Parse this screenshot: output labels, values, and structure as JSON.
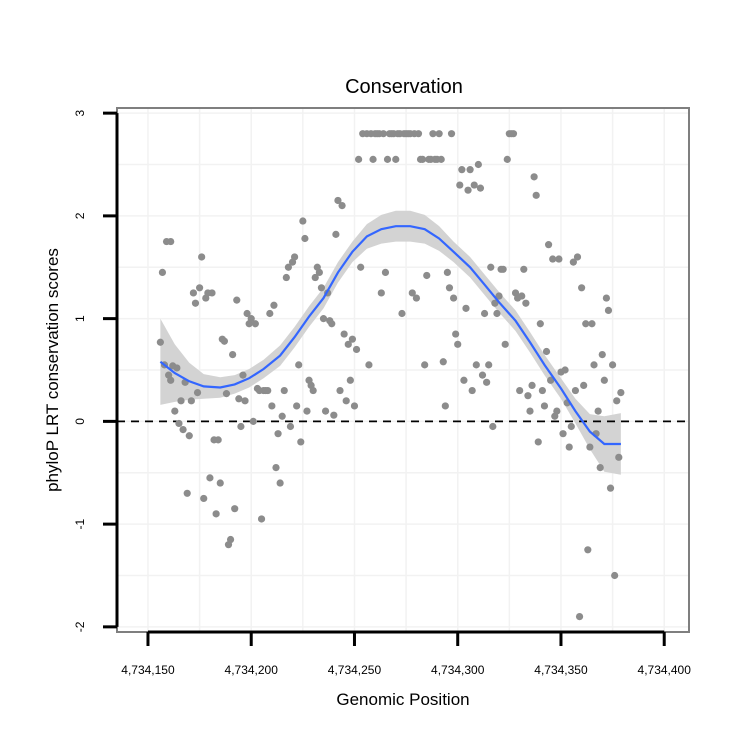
{
  "chart_data": {
    "type": "scatter",
    "title": "Conservation",
    "xlabel": "Genomic Position",
    "ylabel": "phyloP LRT conservation scores",
    "xlim": [
      4734135,
      4734412
    ],
    "ylim": [
      -2.05,
      3.05
    ],
    "x_ticks": [
      4734150,
      4734200,
      4734250,
      4734300,
      4734350,
      4734400
    ],
    "x_tick_labels": [
      "4,734,150",
      "4,734,200",
      "4,734,250",
      "4,734,300",
      "4,734,350",
      "4,734,400"
    ],
    "y_ticks": [
      -2,
      -1,
      0,
      1,
      2,
      3
    ],
    "y_tick_labels": [
      "-2",
      "-1",
      "0",
      "1",
      "2",
      "3"
    ],
    "reference_line": {
      "y": 0,
      "style": "dashed"
    },
    "grid": true,
    "colors": {
      "points": "#8c8c8c",
      "smooth_line": "#3366ff",
      "confidence_band": "#d3d3d3",
      "reference_line": "#000000",
      "panel_border": "#7f7f7f",
      "grid": "#f2f2f2"
    },
    "points": [
      [
        4734156,
        0.77
      ],
      [
        4734157,
        1.45
      ],
      [
        4734158,
        0.55
      ],
      [
        4734159,
        1.75
      ],
      [
        4734160,
        0.45
      ],
      [
        4734161,
        0.4
      ],
      [
        4734161,
        1.75
      ],
      [
        4734162,
        0.54
      ],
      [
        4734163,
        0.1
      ],
      [
        4734164,
        0.52
      ],
      [
        4734165,
        -0.02
      ],
      [
        4734166,
        0.2
      ],
      [
        4734167,
        -0.08
      ],
      [
        4734168,
        0.38
      ],
      [
        4734169,
        -0.7
      ],
      [
        4734170,
        -0.14
      ],
      [
        4734171,
        0.2
      ],
      [
        4734172,
        1.25
      ],
      [
        4734173,
        1.15
      ],
      [
        4734174,
        0.28
      ],
      [
        4734175,
        1.3
      ],
      [
        4734176,
        1.6
      ],
      [
        4734177,
        -0.75
      ],
      [
        4734178,
        1.2
      ],
      [
        4734179,
        1.25
      ],
      [
        4734180,
        -0.55
      ],
      [
        4734181,
        1.25
      ],
      [
        4734182,
        -0.18
      ],
      [
        4734183,
        -0.9
      ],
      [
        4734184,
        -0.18
      ],
      [
        4734185,
        -0.6
      ],
      [
        4734186,
        0.8
      ],
      [
        4734187,
        0.78
      ],
      [
        4734188,
        0.27
      ],
      [
        4734189,
        -1.2
      ],
      [
        4734190,
        -1.15
      ],
      [
        4734191,
        0.65
      ],
      [
        4734192,
        -0.85
      ],
      [
        4734193,
        1.18
      ],
      [
        4734194,
        0.22
      ],
      [
        4734195,
        -0.05
      ],
      [
        4734196,
        0.45
      ],
      [
        4734197,
        0.2
      ],
      [
        4734198,
        1.05
      ],
      [
        4734199,
        0.95
      ],
      [
        4734200,
        1.0
      ],
      [
        4734201,
        0.0
      ],
      [
        4734202,
        0.95
      ],
      [
        4734203,
        0.32
      ],
      [
        4734204,
        0.3
      ],
      [
        4734205,
        -0.95
      ],
      [
        4734206,
        0.3
      ],
      [
        4734207,
        0.3
      ],
      [
        4734208,
        0.3
      ],
      [
        4734209,
        1.05
      ],
      [
        4734210,
        0.15
      ],
      [
        4734211,
        1.13
      ],
      [
        4734212,
        -0.45
      ],
      [
        4734213,
        -0.12
      ],
      [
        4734214,
        -0.6
      ],
      [
        4734215,
        0.05
      ],
      [
        4734216,
        0.3
      ],
      [
        4734217,
        1.4
      ],
      [
        4734218,
        1.5
      ],
      [
        4734219,
        -0.05
      ],
      [
        4734220,
        1.55
      ],
      [
        4734221,
        1.6
      ],
      [
        4734222,
        0.15
      ],
      [
        4734223,
        0.55
      ],
      [
        4734224,
        -0.2
      ],
      [
        4734225,
        1.95
      ],
      [
        4734226,
        1.78
      ],
      [
        4734227,
        0.1
      ],
      [
        4734228,
        0.4
      ],
      [
        4734229,
        0.35
      ],
      [
        4734230,
        0.3
      ],
      [
        4734231,
        1.4
      ],
      [
        4734232,
        1.5
      ],
      [
        4734233,
        1.45
      ],
      [
        4734234,
        1.3
      ],
      [
        4734235,
        1.0
      ],
      [
        4734236,
        0.1
      ],
      [
        4734237,
        1.25
      ],
      [
        4734238,
        0.98
      ],
      [
        4734239,
        0.95
      ],
      [
        4734240,
        0.06
      ],
      [
        4734241,
        1.82
      ],
      [
        4734242,
        2.15
      ],
      [
        4734243,
        0.3
      ],
      [
        4734244,
        2.1
      ],
      [
        4734245,
        0.85
      ],
      [
        4734246,
        0.2
      ],
      [
        4734247,
        0.75
      ],
      [
        4734248,
        0.4
      ],
      [
        4734249,
        0.8
      ],
      [
        4734250,
        0.15
      ],
      [
        4734251,
        0.7
      ],
      [
        4734252,
        2.55
      ],
      [
        4734253,
        1.5
      ],
      [
        4734254,
        2.8
      ],
      [
        4734256,
        2.8
      ],
      [
        4734257,
        0.55
      ],
      [
        4734258,
        2.8
      ],
      [
        4734259,
        2.55
      ],
      [
        4734260,
        2.8
      ],
      [
        4734261,
        2.8
      ],
      [
        4734262,
        2.8
      ],
      [
        4734263,
        1.25
      ],
      [
        4734264,
        2.8
      ],
      [
        4734265,
        1.45
      ],
      [
        4734266,
        2.55
      ],
      [
        4734267,
        2.8
      ],
      [
        4734268,
        2.8
      ],
      [
        4734269,
        2.8
      ],
      [
        4734270,
        2.55
      ],
      [
        4734271,
        2.8
      ],
      [
        4734272,
        2.8
      ],
      [
        4734273,
        1.05
      ],
      [
        4734274,
        2.8
      ],
      [
        4734275,
        2.8
      ],
      [
        4734276,
        2.8
      ],
      [
        4734277,
        2.8
      ],
      [
        4734278,
        1.25
      ],
      [
        4734279,
        2.8
      ],
      [
        4734280,
        1.2
      ],
      [
        4734281,
        2.8
      ],
      [
        4734282,
        2.55
      ],
      [
        4734283,
        2.55
      ],
      [
        4734284,
        0.55
      ],
      [
        4734285,
        1.42
      ],
      [
        4734286,
        2.55
      ],
      [
        4734287,
        2.55
      ],
      [
        4734288,
        2.8
      ],
      [
        4734289,
        2.55
      ],
      [
        4734290,
        2.55
      ],
      [
        4734291,
        2.8
      ],
      [
        4734292,
        2.55
      ],
      [
        4734293,
        0.58
      ],
      [
        4734294,
        0.15
      ],
      [
        4734295,
        1.45
      ],
      [
        4734296,
        1.3
      ],
      [
        4734297,
        2.8
      ],
      [
        4734298,
        1.2
      ],
      [
        4734299,
        0.85
      ],
      [
        4734300,
        0.75
      ],
      [
        4734301,
        2.3
      ],
      [
        4734302,
        2.45
      ],
      [
        4734303,
        0.4
      ],
      [
        4734304,
        1.1
      ],
      [
        4734305,
        2.25
      ],
      [
        4734306,
        2.45
      ],
      [
        4734307,
        0.3
      ],
      [
        4734308,
        2.3
      ],
      [
        4734309,
        0.55
      ],
      [
        4734310,
        2.5
      ],
      [
        4734311,
        2.27
      ],
      [
        4734312,
        0.45
      ],
      [
        4734313,
        1.05
      ],
      [
        4734314,
        0.38
      ],
      [
        4734315,
        0.55
      ],
      [
        4734316,
        1.5
      ],
      [
        4734317,
        -0.05
      ],
      [
        4734318,
        1.15
      ],
      [
        4734319,
        1.05
      ],
      [
        4734320,
        1.22
      ],
      [
        4734321,
        1.48
      ],
      [
        4734322,
        1.48
      ],
      [
        4734323,
        0.75
      ],
      [
        4734324,
        2.55
      ],
      [
        4734325,
        2.8
      ],
      [
        4734326,
        2.8
      ],
      [
        4734327,
        2.8
      ],
      [
        4734328,
        1.25
      ],
      [
        4734329,
        1.2
      ],
      [
        4734330,
        0.3
      ],
      [
        4734331,
        1.22
      ],
      [
        4734332,
        1.48
      ],
      [
        4734333,
        1.15
      ],
      [
        4734334,
        0.25
      ],
      [
        4734335,
        0.1
      ],
      [
        4734336,
        0.35
      ],
      [
        4734337,
        2.38
      ],
      [
        4734338,
        2.2
      ],
      [
        4734339,
        -0.2
      ],
      [
        4734340,
        0.95
      ],
      [
        4734341,
        0.3
      ],
      [
        4734342,
        0.15
      ],
      [
        4734343,
        0.68
      ],
      [
        4734344,
        1.72
      ],
      [
        4734345,
        0.4
      ],
      [
        4734346,
        1.58
      ],
      [
        4734347,
        0.05
      ],
      [
        4734348,
        0.1
      ],
      [
        4734349,
        1.58
      ],
      [
        4734350,
        0.48
      ],
      [
        4734351,
        -0.12
      ],
      [
        4734352,
        0.5
      ],
      [
        4734353,
        0.18
      ],
      [
        4734354,
        -0.25
      ],
      [
        4734355,
        -0.05
      ],
      [
        4734356,
        1.55
      ],
      [
        4734357,
        0.3
      ],
      [
        4734358,
        1.6
      ],
      [
        4734359,
        -1.9
      ],
      [
        4734360,
        1.3
      ],
      [
        4734361,
        0.35
      ],
      [
        4734362,
        0.95
      ],
      [
        4734363,
        -1.25
      ],
      [
        4734364,
        -0.25
      ],
      [
        4734365,
        0.95
      ],
      [
        4734366,
        0.55
      ],
      [
        4734367,
        -0.12
      ],
      [
        4734368,
        0.1
      ],
      [
        4734369,
        -0.45
      ],
      [
        4734370,
        0.65
      ],
      [
        4734371,
        0.4
      ],
      [
        4734372,
        1.2
      ],
      [
        4734373,
        1.08
      ],
      [
        4734374,
        -0.65
      ],
      [
        4734375,
        0.55
      ],
      [
        4734376,
        -1.5
      ],
      [
        4734377,
        0.2
      ],
      [
        4734378,
        -0.35
      ],
      [
        4734379,
        0.28
      ]
    ],
    "smooth_curve": [
      [
        4734156,
        0.58
      ],
      [
        4734163,
        0.47
      ],
      [
        4734170,
        0.39
      ],
      [
        4734177,
        0.34
      ],
      [
        4734185,
        0.33
      ],
      [
        4734192,
        0.36
      ],
      [
        4734199,
        0.42
      ],
      [
        4734206,
        0.51
      ],
      [
        4734214,
        0.64
      ],
      [
        4734221,
        0.82
      ],
      [
        4734228,
        1.02
      ],
      [
        4734235,
        1.2
      ],
      [
        4734242,
        1.45
      ],
      [
        4734249,
        1.65
      ],
      [
        4734256,
        1.8
      ],
      [
        4734263,
        1.87
      ],
      [
        4734270,
        1.9
      ],
      [
        4734277,
        1.9
      ],
      [
        4734284,
        1.87
      ],
      [
        4734291,
        1.78
      ],
      [
        4734298,
        1.65
      ],
      [
        4734306,
        1.5
      ],
      [
        4734313,
        1.33
      ],
      [
        4734320,
        1.16
      ],
      [
        4734328,
        0.98
      ],
      [
        4734335,
        0.77
      ],
      [
        4734342,
        0.55
      ],
      [
        4734350,
        0.32
      ],
      [
        4734357,
        0.1
      ],
      [
        4734364,
        -0.1
      ],
      [
        4734371,
        -0.22
      ],
      [
        4734379,
        -0.22
      ]
    ],
    "band_half_width": [
      0.42,
      0.28,
      0.18,
      0.12,
      0.1,
      0.09,
      0.09,
      0.09,
      0.1,
      0.1,
      0.1,
      0.1,
      0.1,
      0.1,
      0.12,
      0.14,
      0.15,
      0.15,
      0.14,
      0.12,
      0.1,
      0.1,
      0.1,
      0.1,
      0.1,
      0.1,
      0.1,
      0.1,
      0.12,
      0.17,
      0.27,
      0.3
    ]
  }
}
